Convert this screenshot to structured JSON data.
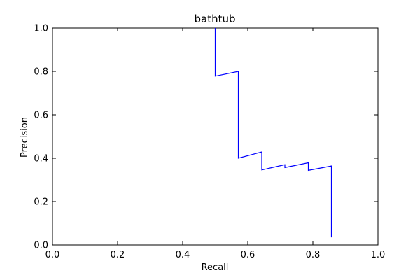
{
  "chart_data": {
    "type": "line",
    "title": "bathtub",
    "xlabel": "Recall",
    "ylabel": "Precision",
    "xlim": [
      0.0,
      1.0
    ],
    "ylim": [
      0.0,
      1.0
    ],
    "grid": false,
    "xticks": [
      0.0,
      0.2,
      0.4,
      0.6,
      0.8,
      1.0
    ],
    "yticks": [
      0.0,
      0.2,
      0.4,
      0.6,
      0.8,
      1.0
    ],
    "xtick_labels": [
      "0.0",
      "0.2",
      "0.4",
      "0.6",
      "0.8",
      "1.0"
    ],
    "ytick_labels": [
      "0.0",
      "0.2",
      "0.4",
      "0.6",
      "0.8",
      "1.0"
    ],
    "series": [
      {
        "color": "#0000ff",
        "x": [
          0.5,
          0.5,
          0.571,
          0.571,
          0.643,
          0.643,
          0.714,
          0.714,
          0.786,
          0.786,
          0.857,
          0.857
        ],
        "y": [
          1.0,
          0.778,
          0.8,
          0.4,
          0.429,
          0.346,
          0.37,
          0.357,
          0.379,
          0.344,
          0.364,
          0.035
        ]
      }
    ]
  }
}
